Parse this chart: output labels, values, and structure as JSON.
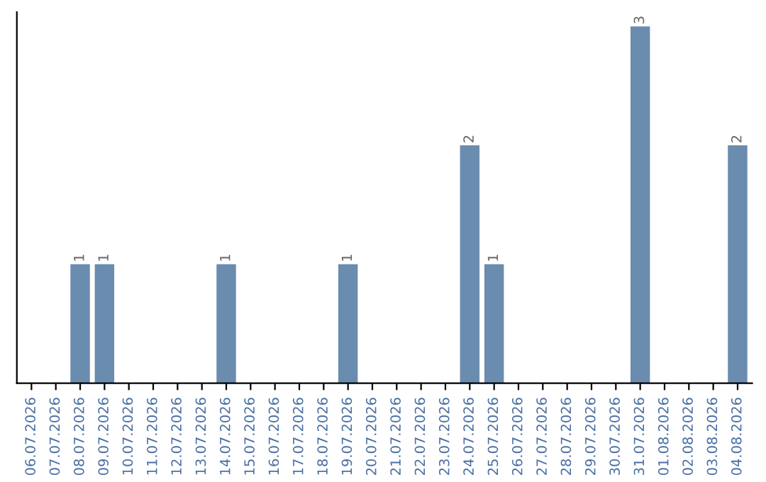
{
  "chart_data": {
    "type": "bar",
    "categories": [
      "06.07.2026",
      "07.07.2026",
      "08.07.2026",
      "09.07.2026",
      "10.07.2026",
      "11.07.2026",
      "12.07.2026",
      "13.07.2026",
      "14.07.2026",
      "15.07.2026",
      "16.07.2026",
      "17.07.2026",
      "18.07.2026",
      "19.07.2026",
      "20.07.2026",
      "21.07.2026",
      "22.07.2026",
      "23.07.2026",
      "24.07.2026",
      "25.07.2026",
      "26.07.2026",
      "27.07.2026",
      "28.07.2026",
      "29.07.2026",
      "30.07.2026",
      "31.07.2026",
      "01.08.2026",
      "02.08.2026",
      "03.08.2026",
      "04.08.2026"
    ],
    "values": [
      0,
      0,
      1,
      1,
      0,
      0,
      0,
      0,
      1,
      0,
      0,
      0,
      0,
      1,
      0,
      0,
      0,
      0,
      2,
      1,
      0,
      0,
      0,
      0,
      0,
      3,
      0,
      0,
      0,
      2
    ],
    "color": "#6a8caf",
    "value_labels": [
      null,
      null,
      "1",
      "1",
      null,
      null,
      null,
      null,
      "1",
      null,
      null,
      null,
      null,
      "1",
      null,
      null,
      null,
      null,
      "2",
      "1",
      null,
      null,
      null,
      null,
      null,
      "3",
      null,
      null,
      null,
      "2"
    ],
    "grid": false,
    "legend": false
  }
}
